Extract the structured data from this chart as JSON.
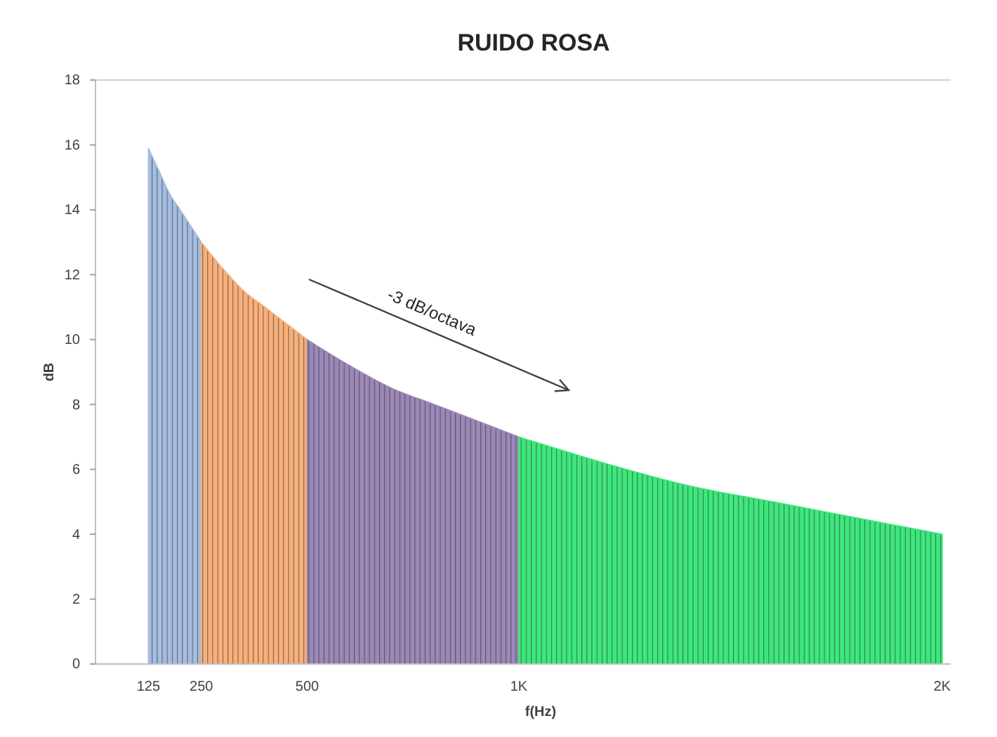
{
  "chart_data": {
    "type": "area",
    "title": "RUIDO ROSA",
    "xlabel": "f(Hz)",
    "ylabel": "dB",
    "annotations": [
      "-3 dB/octava"
    ],
    "xlim": [
      0,
      2020
    ],
    "xticks": [
      125,
      250,
      500,
      {
        "value": 1000,
        "label": "1K"
      },
      {
        "value": 2000,
        "label": "2K"
      }
    ],
    "ylim": [
      0,
      18
    ],
    "yticks": [
      0,
      2,
      4,
      6,
      8,
      10,
      12,
      14,
      16,
      18
    ],
    "series": [
      {
        "color": "#a5bde0",
        "x": [
          125,
          150,
          175,
          200,
          225,
          250
        ],
        "values": [
          15.9,
          15.2,
          14.5,
          14.0,
          13.5,
          13.0
        ]
      },
      {
        "color": "#f8b07a",
        "x": [
          250,
          300,
          350,
          400,
          450,
          500
        ],
        "values": [
          13.0,
          12.2,
          11.5,
          11.0,
          10.5,
          10.0
        ]
      },
      {
        "color": "#9c88b6",
        "x": [
          500,
          600,
          700,
          800,
          900,
          1000
        ],
        "values": [
          10.0,
          9.2,
          8.5,
          8.0,
          7.5,
          7.0
        ]
      },
      {
        "color": "#3ee87c",
        "x": [
          1000,
          1200,
          1400,
          1600,
          1800,
          2000
        ],
        "values": [
          7.0,
          6.2,
          5.5,
          5.0,
          4.5,
          4.0
        ]
      }
    ]
  }
}
